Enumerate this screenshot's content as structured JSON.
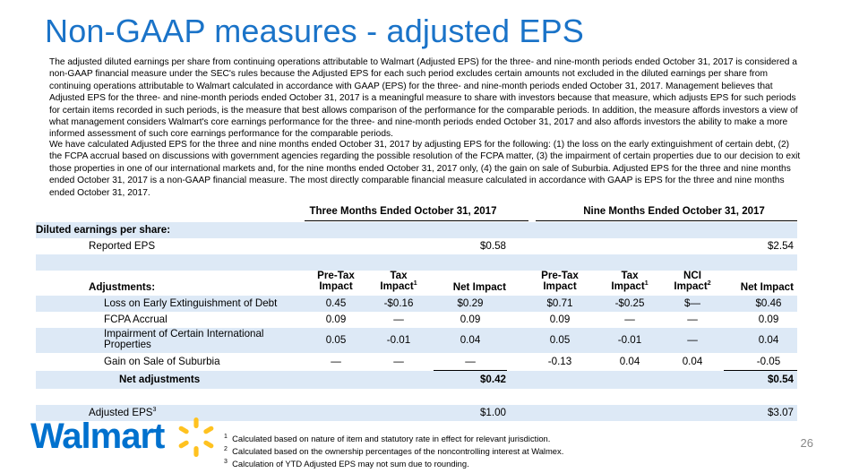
{
  "title": "Non-GAAP measures - adjusted EPS",
  "paragraphs": [
    "The adjusted diluted earnings per share from continuing operations attributable to Walmart (Adjusted EPS) for the three- and nine-month periods ended October 31, 2017 is considered a non-GAAP financial measure under the SEC's rules because the Adjusted EPS for each such period excludes certain amounts not excluded in the diluted earnings per share from continuing operations attributable to Walmart calculated in accordance with GAAP (EPS) for the three- and nine-month periods ended October 31, 2017. Management believes that Adjusted EPS for the three- and nine-month periods ended October 31, 2017 is a meaningful measure to share with investors because that measure, which adjusts EPS for such periods for certain items recorded in such periods, is the measure that best allows comparison of the performance for the comparable periods.  In addition, the measure affords investors a view of what management considers Walmart's core earnings performance for the three- and nine-month periods ended October 31, 2017 and also affords investors the ability to make a more informed assessment of such core earnings performance for the comparable periods.",
    "We have calculated Adjusted EPS for the three and nine months ended October 31, 2017 by adjusting EPS for the following: (1) the loss on the early extinguishment of certain debt, (2) the FCPA accrual based on discussions with government agencies regarding the possible resolution of the FCPA matter, (3) the impairment of certain properties due to our decision to exit those properties in one of our international markets and, for the nine months ended October 31, 2017 only, (4) the gain on sale of Suburbia.  Adjusted EPS for the three and nine months ended October 31, 2017 is a non-GAAP financial measure.  The most directly comparable financial measure calculated in accordance with GAAP is EPS for the three and nine months ended October 31, 2017."
  ],
  "table": {
    "period_three": "Three Months Ended October 31, 2017",
    "period_nine": "Nine Months Ended October 31, 2017",
    "diluted_label": "Diluted earnings per share:",
    "reported_label": "Reported EPS",
    "reported_three": "$0.58",
    "reported_nine": "$2.54",
    "adjustments_label": "Adjustments:",
    "col_pretax_1": "Pre-Tax",
    "col_pretax_2": "Impact",
    "col_tax_1": "Tax",
    "col_tax_2": "Impact",
    "col_tax_sup": "1",
    "col_nci_1": "NCI",
    "col_nci_2": "Impact",
    "col_nci_sup": "2",
    "col_net": "Net Impact",
    "rows": [
      {
        "label": "Loss on Early Extinguishment of Debt",
        "label2": "",
        "t_pre": "0.45",
        "t_tax": "-$0.16",
        "t_net": "$0.29",
        "n_pre": "$0.71",
        "n_tax": "-$0.25",
        "n_nci": "$—",
        "n_net": "$0.46"
      },
      {
        "label": "FCPA Accrual",
        "label2": "",
        "t_pre": "0.09",
        "t_tax": "—",
        "t_net": "0.09",
        "n_pre": "0.09",
        "n_tax": "—",
        "n_nci": "—",
        "n_net": "0.09"
      },
      {
        "label": "Impairment of Certain International",
        "label2": "Properties",
        "t_pre": "0.05",
        "t_tax": "-0.01",
        "t_net": "0.04",
        "n_pre": "0.05",
        "n_tax": "-0.01",
        "n_nci": "—",
        "n_net": "0.04"
      },
      {
        "label": "Gain on Sale of Suburbia",
        "label2": "",
        "t_pre": "—",
        "t_tax": "—",
        "t_net": "—",
        "n_pre": "-0.13",
        "n_tax": "0.04",
        "n_nci": "0.04",
        "n_net": "-0.05"
      }
    ],
    "net_label": "Net adjustments",
    "net_three": "$0.42",
    "net_nine": "$0.54",
    "adjusted_label": "Adjusted EPS",
    "adjusted_sup": "3",
    "adjusted_three": "$1.00",
    "adjusted_nine": "$3.07"
  },
  "footnotes": [
    {
      "num": "1",
      "text": "Calculated based on nature of item and statutory rate in effect for relevant jurisdiction."
    },
    {
      "num": "2",
      "text": "Calculated based on the ownership percentages of the noncontrolling interest at Walmex."
    },
    {
      "num": "3",
      "text": "Calculation of YTD Adjusted EPS may not sum due to rounding."
    }
  ],
  "logo_text": "Walmart",
  "page_number": "26",
  "colors": {
    "title": "#1a73c8",
    "row_shade": "#dde9f6",
    "logo_blue": "#0071ce",
    "spark_yellow": "#ffc220"
  }
}
